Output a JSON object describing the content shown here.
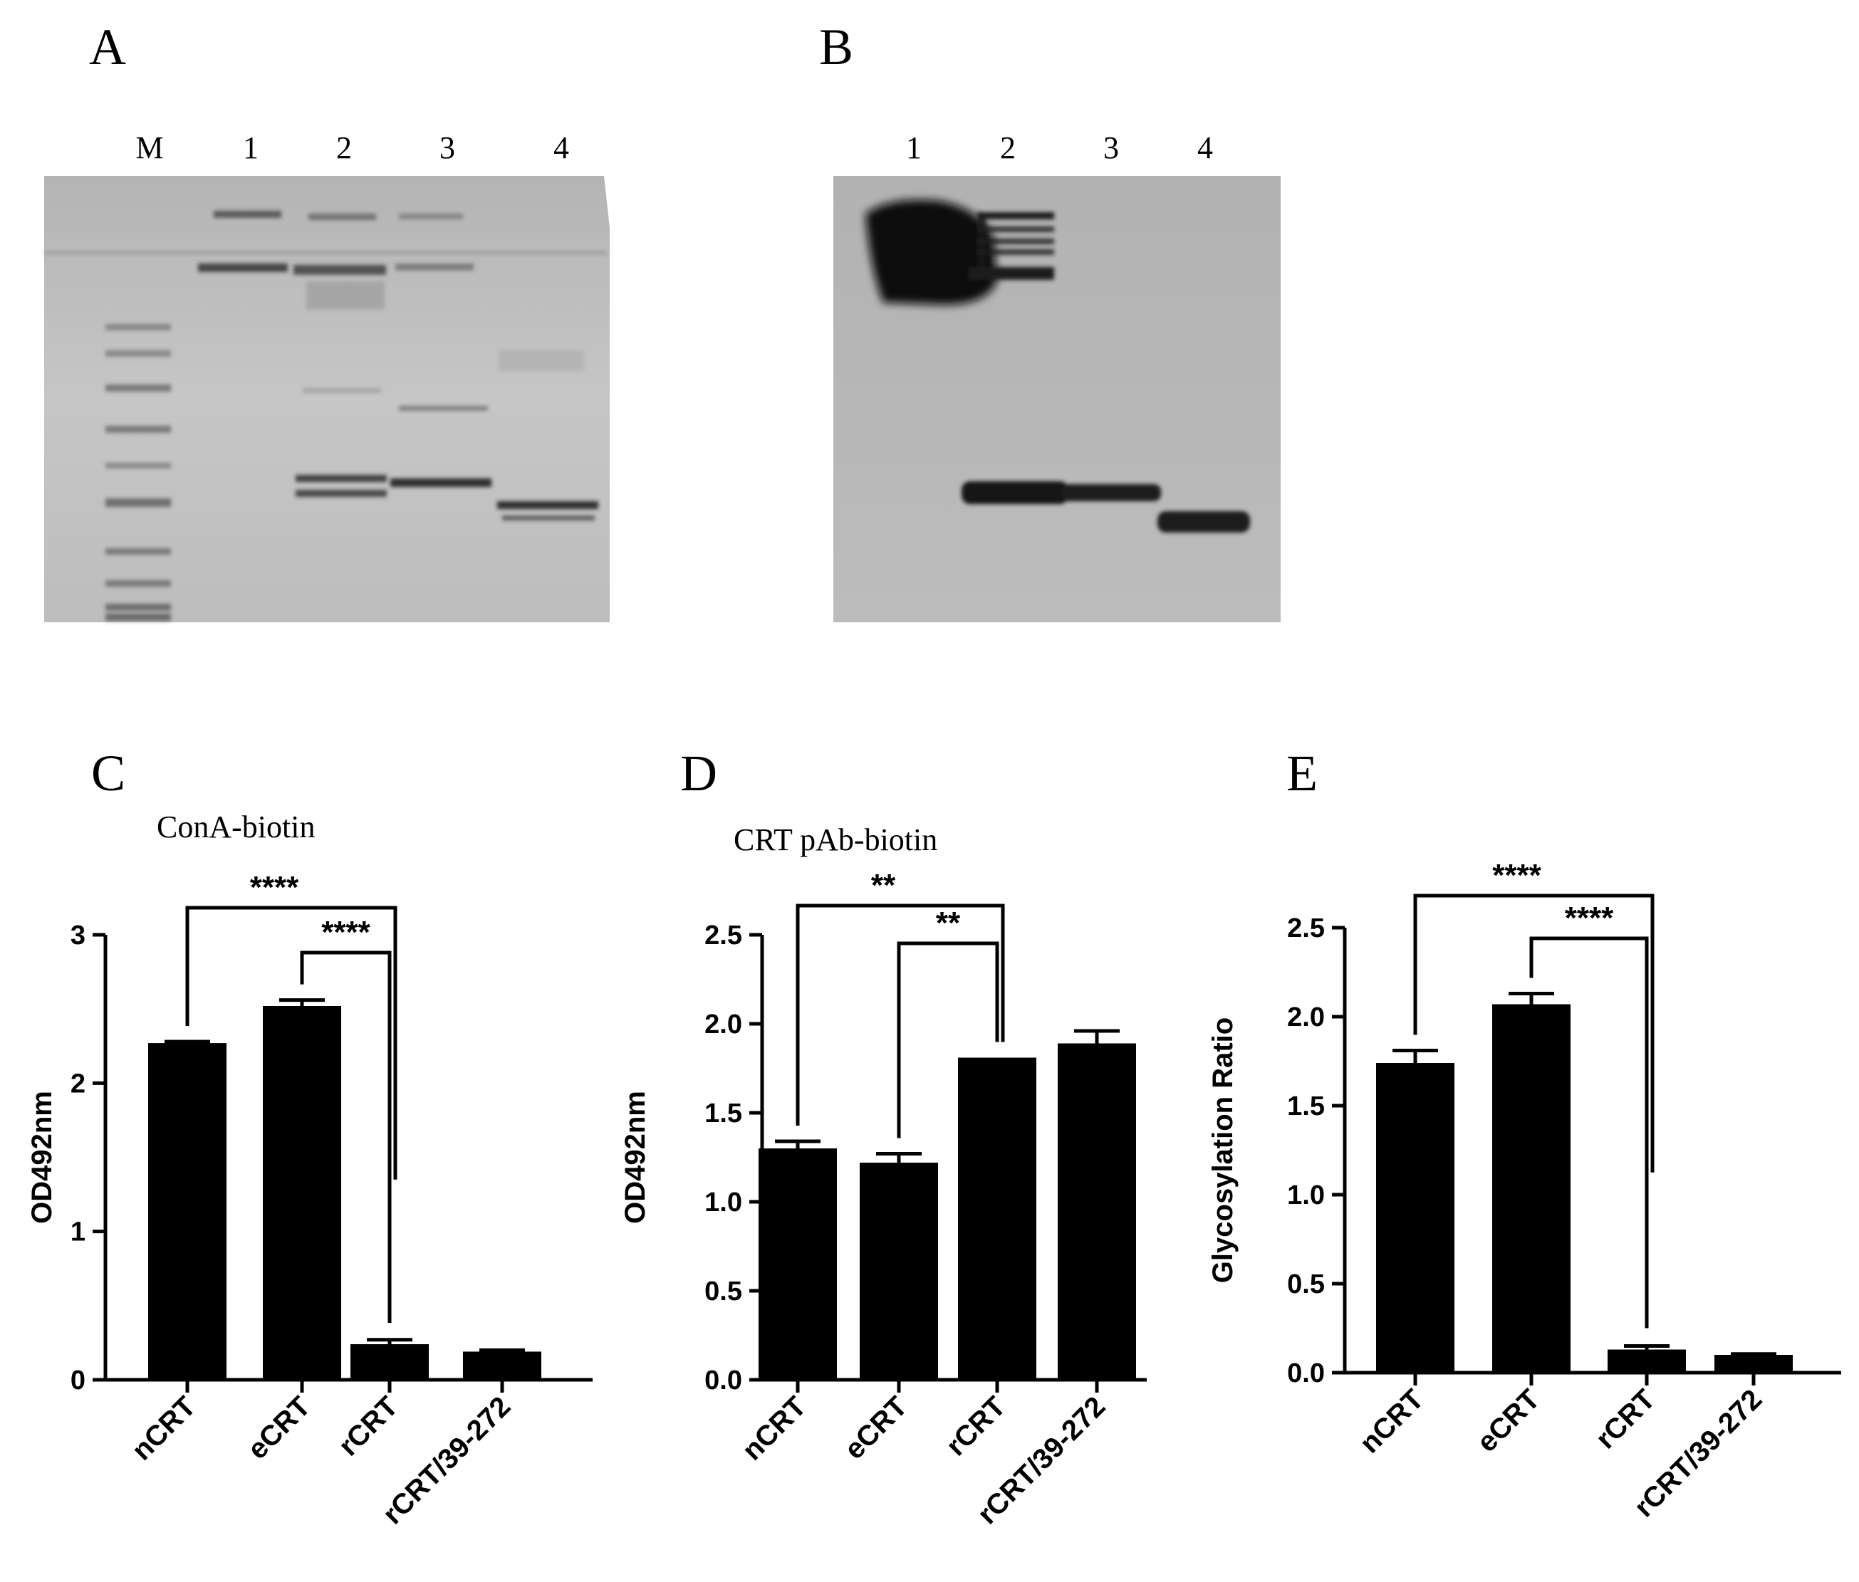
{
  "blots": [
    {
      "letter": "A",
      "lanes": [
        "M",
        "1",
        "2",
        "3",
        "4"
      ]
    },
    {
      "letter": "B",
      "lanes": [
        "1",
        "2",
        "3",
        "4"
      ]
    }
  ],
  "chart_data": [
    {
      "type": "bar",
      "letter": "C",
      "title": "ConA-biotin",
      "ylabel": "OD492nm",
      "xlabel": "",
      "categories": [
        "nCRT",
        "eCRT",
        "rCRT",
        "rCRT/39-272"
      ],
      "values": [
        2.27,
        2.52,
        0.24,
        0.19
      ],
      "errors": [
        0.01,
        0.04,
        0.03,
        0.01
      ],
      "ylim": [
        0,
        3
      ],
      "yticks": [
        "0",
        "1",
        "2",
        "3"
      ],
      "grid": false,
      "color": "#000000",
      "significance": [
        {
          "from": 0,
          "to": 2,
          "label": "****"
        },
        {
          "from": 1,
          "to": 2,
          "label": "****"
        }
      ]
    },
    {
      "type": "bar",
      "letter": "D",
      "title": "CRT pAb-biotin",
      "ylabel": "OD492nm",
      "xlabel": "",
      "categories": [
        "nCRT",
        "eCRT",
        "rCRT",
        "rCRT/39-272"
      ],
      "values": [
        1.3,
        1.22,
        1.81,
        1.89
      ],
      "errors": [
        0.04,
        0.05,
        0.0,
        0.07
      ],
      "ylim": [
        0,
        2.5
      ],
      "yticks": [
        "0.0",
        "0.5",
        "1.0",
        "1.5",
        "2.0",
        "2.5"
      ],
      "grid": false,
      "color": "#000000",
      "significance": [
        {
          "from": 0,
          "to": 2,
          "label": "**"
        },
        {
          "from": 1,
          "to": 2,
          "label": "**"
        }
      ]
    },
    {
      "type": "bar",
      "letter": "E",
      "title": "",
      "ylabel": "Glycosylation Ratio",
      "xlabel": "",
      "categories": [
        "nCRT",
        "eCRT",
        "rCRT",
        "rCRT/39-272"
      ],
      "values": [
        1.74,
        2.07,
        0.13,
        0.1
      ],
      "errors": [
        0.07,
        0.06,
        0.02,
        0.005
      ],
      "ylim": [
        0,
        2.5
      ],
      "yticks": [
        "0.0",
        "0.5",
        "1.0",
        "1.5",
        "2.0",
        "2.5"
      ],
      "grid": false,
      "color": "#000000",
      "significance": [
        {
          "from": 0,
          "to": 2,
          "label": "****"
        },
        {
          "from": 1,
          "to": 2,
          "label": "****"
        }
      ]
    }
  ]
}
